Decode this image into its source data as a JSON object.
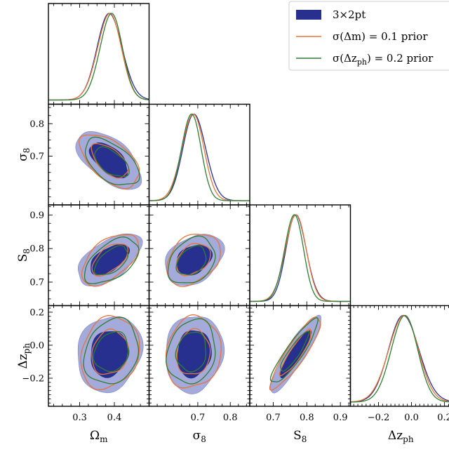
{
  "chart_data": {
    "type": "corner",
    "parameters": [
      {
        "key": "om",
        "label_main": "Ω",
        "label_sub": "m",
        "range": [
          0.21,
          0.5
        ],
        "ticks": [
          0.3,
          0.4
        ],
        "tick_labels": [
          "0.3",
          "0.4"
        ]
      },
      {
        "key": "s8",
        "label_main": "σ",
        "label_sub": "8",
        "range": [
          0.55,
          0.86
        ],
        "ticks": [
          0.7,
          0.8
        ],
        "tick_labels": [
          "0.7",
          "0.8"
        ]
      },
      {
        "key": "S8",
        "label_main": "S",
        "label_sub": "8",
        "range": [
          0.63,
          0.93
        ],
        "ticks": [
          0.7,
          0.8,
          0.9
        ],
        "tick_labels": [
          "0.7",
          "0.8",
          "0.9"
        ]
      },
      {
        "key": "dz",
        "label_main": "Δz",
        "label_sub": "ph",
        "range": [
          -0.37,
          0.24
        ],
        "ticks": [
          -0.2,
          0.0,
          0.2
        ],
        "tick_labels": [
          "−0.2",
          "0.0",
          "0.2"
        ]
      }
    ],
    "series": [
      {
        "name": "3×2pt",
        "name_main": "3×2pt",
        "name_sub": "",
        "name_tail": "",
        "style": "filled",
        "color": "#27308f",
        "fill_inner": "#27308f",
        "fill_outer": "#9aa1d6",
        "mean": {
          "om": 0.385,
          "s8": 0.688,
          "S8": 0.767,
          "dz": -0.05
        },
        "sd": {
          "om": 0.036,
          "s8": 0.035,
          "S8": 0.03,
          "dz": 0.092
        }
      },
      {
        "name": "σ(Δm) = 0.1 prior",
        "name_main": "σ(Δm) = 0.1 prior",
        "name_sub": "",
        "name_tail": "",
        "style": "line",
        "color": "#e8743b",
        "mean": {
          "om": 0.387,
          "s8": 0.686,
          "S8": 0.768,
          "dz": -0.045
        },
        "sd": {
          "om": 0.034,
          "s8": 0.034,
          "S8": 0.031,
          "dz": 0.09
        }
      },
      {
        "name": "σ(Δz_ph) = 0.2 prior",
        "name_main": "σ(Δz",
        "name_sub": "ph",
        "name_tail": ") = 0.2 prior",
        "style": "line",
        "color": "#2f7d32",
        "mean": {
          "om": 0.392,
          "s8": 0.681,
          "S8": 0.763,
          "dz": -0.04
        },
        "sd": {
          "om": 0.032,
          "s8": 0.03,
          "S8": 0.028,
          "dz": 0.08
        }
      }
    ],
    "correlations": {
      "om|s8": -0.55,
      "om|S8": 0.55,
      "om|dz": 0.15,
      "s8|S8": 0.3,
      "s8|dz": 0.12,
      "S8|dz": 0.9
    },
    "contour_levels": [
      "68%",
      "95%"
    ],
    "legend": {
      "position": "top-right"
    }
  }
}
